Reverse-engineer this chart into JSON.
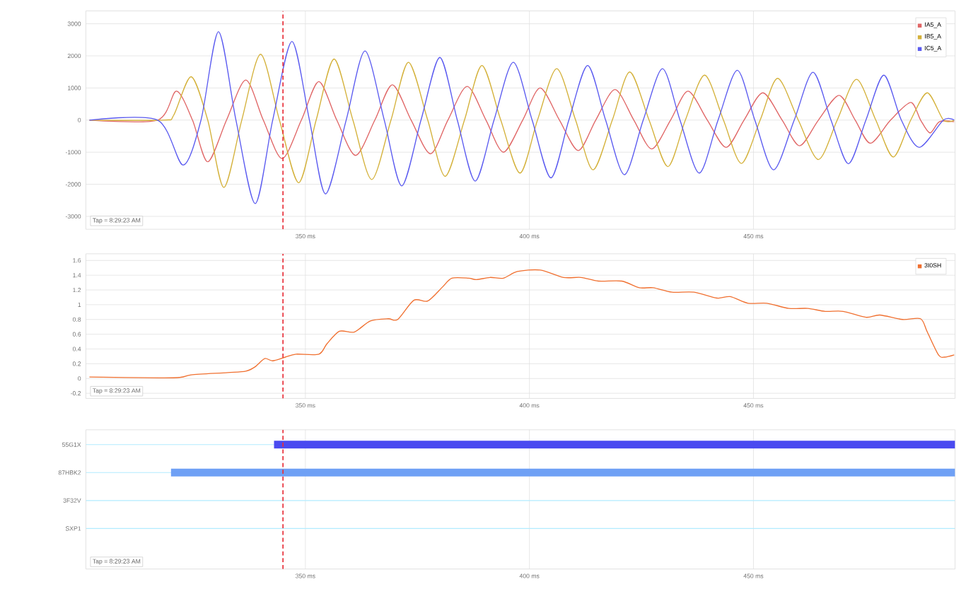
{
  "chart_data": [
    {
      "type": "line",
      "xlim": [
        301,
        495
      ],
      "ylim": [
        -3400,
        3400
      ],
      "xticks": [
        {
          "value": 350,
          "label": "350 ms"
        },
        {
          "value": 400,
          "label": "400 ms"
        },
        {
          "value": 450,
          "label": "450 ms"
        }
      ],
      "yticks": [
        -3000,
        -2000,
        -1000,
        0,
        1000,
        2000,
        3000
      ],
      "grid": true,
      "legend": "top right",
      "series": [
        {
          "name": "IA5_A",
          "color": "#e06666",
          "x": [
            301.8,
            317.0,
            321.2,
            324.8,
            328.2,
            332.4,
            336.7,
            340.6,
            344.8,
            349.1,
            353.0,
            357.0,
            361.2,
            365.5,
            369.4,
            373.6,
            377.9,
            381.8,
            386.1,
            390.3,
            394.2,
            398.5,
            402.4,
            406.7,
            410.9,
            414.8,
            419.1,
            423.3,
            427.3,
            431.5,
            435.4,
            439.7,
            443.9,
            447.9,
            452.1,
            456.4,
            460.3,
            464.5,
            469.1,
            472.7,
            476.1,
            480.6,
            485.1,
            487.3,
            489.4,
            491.5,
            494.8
          ],
          "values": [
            0,
            0,
            900,
            0,
            -1300,
            0,
            1250,
            0,
            -1200,
            0,
            1200,
            0,
            -1100,
            0,
            1100,
            0,
            -1050,
            0,
            1050,
            0,
            -1000,
            0,
            1000,
            0,
            -950,
            0,
            950,
            0,
            -900,
            0,
            900,
            0,
            -850,
            0,
            850,
            0,
            -800,
            0,
            770,
            0,
            -720,
            0,
            550,
            0,
            -400,
            -50,
            -50
          ]
        },
        {
          "name": "IB5_A",
          "color": "#d4b13a",
          "x": [
            301.8,
            318.2,
            320.6,
            324.5,
            328.2,
            331.8,
            335.8,
            340.0,
            344.2,
            348.5,
            352.4,
            356.4,
            360.6,
            364.8,
            369.1,
            373.0,
            377.3,
            381.2,
            385.5,
            389.4,
            393.6,
            397.9,
            401.8,
            406.1,
            410.3,
            414.2,
            418.5,
            422.4,
            426.7,
            430.9,
            434.8,
            439.1,
            443.3,
            447.3,
            451.5,
            455.4,
            460.0,
            464.5,
            468.7,
            473.0,
            477.3,
            481.2,
            485.1,
            488.8,
            492.4,
            494.8
          ],
          "values": [
            0,
            0,
            150,
            1350,
            0,
            -2100,
            0,
            2050,
            0,
            -1950,
            0,
            1900,
            0,
            -1850,
            0,
            1800,
            0,
            -1750,
            0,
            1700,
            0,
            -1650,
            0,
            1600,
            0,
            -1550,
            0,
            1500,
            0,
            -1450,
            0,
            1400,
            0,
            -1350,
            0,
            1300,
            0,
            -1230,
            0,
            1270,
            0,
            -1150,
            0,
            850,
            0,
            0
          ]
        },
        {
          "name": "IC5_A",
          "color": "#5b5bf0",
          "x": [
            301.8,
            317.0,
            322.7,
            326.7,
            330.6,
            334.5,
            338.8,
            342.7,
            347.0,
            350.9,
            354.5,
            359.1,
            363.3,
            367.6,
            371.5,
            375.8,
            380.0,
            383.9,
            387.9,
            392.1,
            396.4,
            400.6,
            404.8,
            408.8,
            413.0,
            417.0,
            421.2,
            425.4,
            429.7,
            433.6,
            437.9,
            442.1,
            446.4,
            450.3,
            454.5,
            459.1,
            463.3,
            467.3,
            471.2,
            475.1,
            479.1,
            483.0,
            487.0,
            492.4,
            494.8
          ],
          "values": [
            0,
            0,
            -1400,
            0,
            2750,
            0,
            -2600,
            0,
            2450,
            0,
            -2300,
            0,
            2150,
            0,
            -2050,
            0,
            1950,
            0,
            -1900,
            0,
            1800,
            0,
            -1800,
            0,
            1700,
            0,
            -1700,
            0,
            1600,
            0,
            -1650,
            0,
            1550,
            0,
            -1550,
            0,
            1490,
            0,
            -1360,
            0,
            1400,
            0,
            -850,
            0,
            0
          ]
        }
      ],
      "ref_lines": [
        {
          "axis": "x",
          "value": 345,
          "color": "#e8303a",
          "line_style": "dashed"
        }
      ],
      "annotations": [
        "Tap = 8:29:23 AM"
      ]
    },
    {
      "type": "line",
      "xlim": [
        301,
        495
      ],
      "ylim": [
        -0.27,
        1.69
      ],
      "xticks": [
        {
          "value": 350,
          "label": "350 ms"
        },
        {
          "value": 400,
          "label": "400 ms"
        },
        {
          "value": 450,
          "label": "450 ms"
        }
      ],
      "yticks": [
        -0.2,
        0,
        0.2,
        0.4,
        0.6,
        0.8,
        1,
        1.2,
        1.4,
        1.6
      ],
      "grid": true,
      "legend": "top right",
      "series": [
        {
          "name": "3I0SH",
          "color": "#f07030",
          "x": [
            301.8,
            320.6,
            324.5,
            332.7,
            336.7,
            338.8,
            340.9,
            342.7,
            345.5,
            347.9,
            353.0,
            354.8,
            357.6,
            360.9,
            364.5,
            368.5,
            370.6,
            374.2,
            377.3,
            380.6,
            382.7,
            386.4,
            388.2,
            391.2,
            394.2,
            397.3,
            402.4,
            407.6,
            411.5,
            415.4,
            420.6,
            424.5,
            427.6,
            431.8,
            436.7,
            441.8,
            444.8,
            448.8,
            453.0,
            457.9,
            462.1,
            466.0,
            470.0,
            475.1,
            478.2,
            483.3,
            487.3,
            488.8,
            491.3,
            492.7,
            494.8
          ],
          "values": [
            0.02,
            0.01,
            0.05,
            0.08,
            0.1,
            0.16,
            0.27,
            0.24,
            0.29,
            0.33,
            0.33,
            0.47,
            0.64,
            0.63,
            0.78,
            0.81,
            0.8,
            1.06,
            1.05,
            1.24,
            1.36,
            1.36,
            1.34,
            1.37,
            1.36,
            1.45,
            1.47,
            1.37,
            1.37,
            1.32,
            1.32,
            1.23,
            1.23,
            1.17,
            1.17,
            1.09,
            1.11,
            1.02,
            1.02,
            0.95,
            0.95,
            0.91,
            0.91,
            0.83,
            0.86,
            0.8,
            0.81,
            0.63,
            0.32,
            0.29,
            0.32
          ]
        }
      ],
      "ref_lines": [
        {
          "axis": "x",
          "value": 345,
          "color": "#e8303a",
          "line_style": "dashed"
        }
      ],
      "annotations": [
        "Tap = 8:29:23 AM"
      ]
    },
    {
      "type": "bar",
      "orientation": "horizontal",
      "xlim": [
        301,
        495
      ],
      "xticks": [
        {
          "value": 350,
          "label": "350 ms"
        },
        {
          "value": 400,
          "label": "400 ms"
        },
        {
          "value": 450,
          "label": "450 ms"
        }
      ],
      "categories": [
        "55G1X",
        "87HBK2",
        "3F32V",
        "SXP1"
      ],
      "base": [
        343,
        320,
        null,
        null
      ],
      "values": [
        152,
        175,
        null,
        null
      ],
      "colors": [
        "#4a4af0",
        "#6fa0f5",
        "#6fa0f5",
        "#6fa0f5"
      ],
      "grid": true,
      "ref_lines": [
        {
          "axis": "x",
          "value": 345,
          "color": "#e8303a",
          "line_style": "dashed"
        }
      ],
      "annotations": [
        "Tap = 8:29:23 AM"
      ]
    }
  ]
}
